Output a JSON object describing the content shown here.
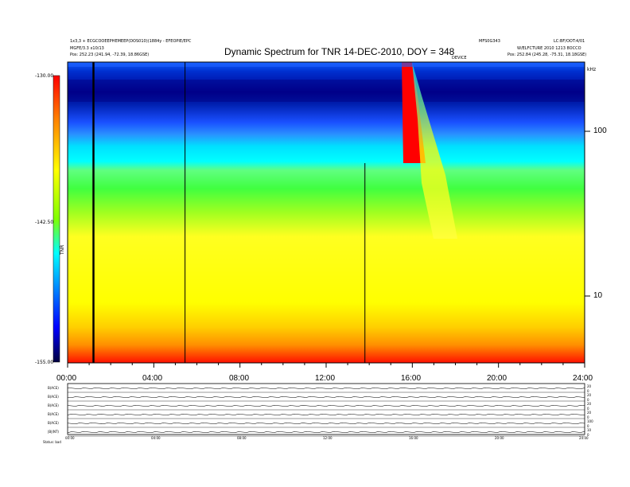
{
  "header": {
    "left_line1": "1x3,3 + ECGCOOEEPHEMEEP(DOS010)(1884y - EFEOPIE/EPC",
    "left_line2": "MGFE/3.3 x10/13",
    "left_line3": "Pos:    252.23 (241.94, -72.39, 18.86GSE)",
    "right_line1": "MFS0G343",
    "right_line2": "LC:BF/OOT:4/01",
    "right_line3": "W/ELFCTURE  2010 1213  8OCCO",
    "right_line4": "Pos:    252.84 (245.28, -75.31, 18.18GSE)",
    "center_small": "DEVICE"
  },
  "chart_data": {
    "type": "heatmap",
    "title": "Dynamic Spectrum for TNR 14-DEC-2010, DOY = 348",
    "x_ticks": [
      "00:00",
      "04:00",
      "08:00",
      "12:00",
      "16:00",
      "20:00",
      "24:00"
    ],
    "x_range_hours": [
      0,
      24
    ],
    "y_scale": "log",
    "y_ticks": [
      "100",
      "10"
    ],
    "y_unit_label": "kHz",
    "colorbar": {
      "ticks": [
        "-130.00",
        "-142.50",
        "-155.00"
      ],
      "range": [
        -155.0,
        -130.0
      ],
      "label": "TNR",
      "colors": [
        "#ff0000",
        "#ff8000",
        "#ffff00",
        "#80ff00",
        "#00ffff",
        "#0080ff",
        "#0000ff",
        "#000080",
        "#000000"
      ]
    },
    "events": [
      {
        "time": 1.2,
        "kind": "vertical line"
      },
      {
        "time": 5.45,
        "kind": "vertical line"
      },
      {
        "time": 13.8,
        "kind": "vertical line"
      }
    ],
    "burst": {
      "start": 15.75,
      "end": 17.0,
      "description": "type III-like drift"
    }
  },
  "subplots": {
    "row_labels": [
      "B(ACE)",
      "B(ACE)",
      "B(ACE)",
      "B(ACE)",
      "B(ACE)",
      "|B|(NT)"
    ],
    "right_labels": [
      "20",
      "0",
      "20",
      "0",
      "20",
      "0",
      "20",
      "0",
      "100",
      "0",
      "10",
      "0"
    ],
    "x_ticks": [
      "00:00",
      "04:00",
      "08:00",
      "12:00",
      "16:00",
      "20:00",
      "24:00"
    ],
    "bottom_left": "Status:  bad"
  }
}
